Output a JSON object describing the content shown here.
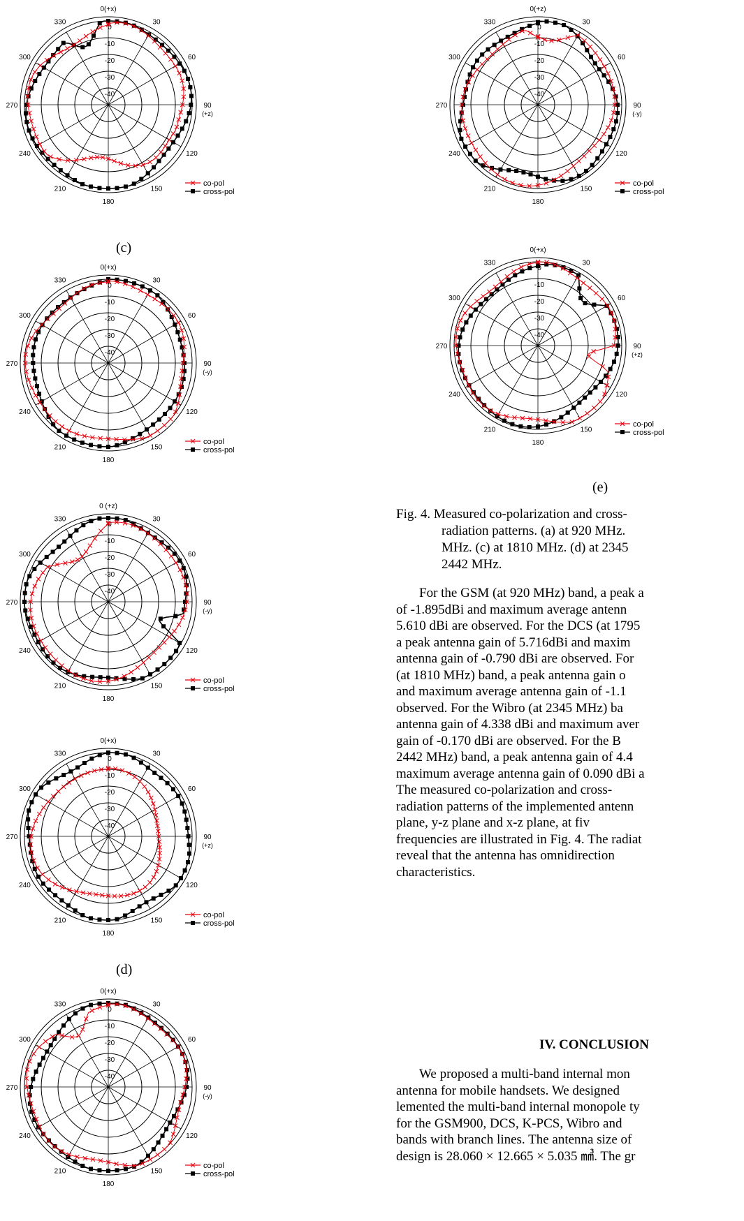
{
  "plots": [
    {
      "top_label": "0(+x)",
      "right_label": [
        "90",
        "(+z)"
      ],
      "legend": [
        "co-pol",
        "cross-pol"
      ],
      "sublabel": "(c)",
      "co_series": "co-pol",
      "cross_series": "cross-pol"
    },
    {
      "top_label": "0(+x)",
      "right_label": [
        "90",
        "(-y)"
      ],
      "legend": [
        "co-pol",
        "cross-pol"
      ],
      "sublabel": "",
      "co_series": "co-pol",
      "cross_series": "cross-pol"
    },
    {
      "top_label": "0 (+z)",
      "right_label": [
        "90",
        "(-y)"
      ],
      "legend": [
        "co-pol",
        "cross-pol"
      ],
      "sublabel": "",
      "co_series": "co-pol",
      "cross_series": "cross-pol"
    },
    {
      "top_label": "0(+x)",
      "right_label": [
        "90",
        "(+z)"
      ],
      "legend": [
        "co-pol",
        "cross-pol"
      ],
      "sublabel": "(d)",
      "co_series": "co-pol",
      "cross_series": "cross-pol"
    },
    {
      "top_label": "0(+x)",
      "right_label": [
        "90",
        "(-y)"
      ],
      "legend": [
        "co-pol",
        "cross-pol"
      ],
      "sublabel": "",
      "co_series": "co-pol",
      "cross_series": "cross-pol"
    },
    {
      "top_label": "0(+z)",
      "right_label": [
        "90",
        "(-y)"
      ],
      "legend": [
        "co-pol",
        "cross-pol"
      ],
      "sublabel": "",
      "co_series": "co-pol",
      "cross_series": "cross-pol"
    },
    {
      "top_label": "0(+x)",
      "right_label": [
        "90",
        "(+z)"
      ],
      "legend": [
        "co-pol",
        "cross-pol"
      ],
      "sublabel": "(e)",
      "co_series": "co-pol",
      "cross_series": "cross-pol"
    }
  ],
  "chart_data": {
    "type": "polar",
    "angle_ticks": [
      "0",
      "30",
      "60",
      "90",
      "120",
      "150",
      "180",
      "210",
      "240",
      "270",
      "300",
      "330"
    ],
    "radial_ticks": [
      "0",
      "-10",
      "-20",
      "-30",
      "-40"
    ],
    "rlim": [
      -50,
      0
    ],
    "legend_position": "bottom-right",
    "series_colors": {
      "co-pol": "#e8000b",
      "cross-pol": "#000000"
    },
    "series": [
      {
        "name": "co-pol",
        "marker": "x"
      },
      {
        "name": "cross-pol",
        "marker": "square"
      }
    ],
    "plots": [
      {
        "co": {
          "base": -4,
          "amps": [
            [
              3,
              3,
              0.2
            ],
            [
              2,
              5,
              1.1
            ]
          ],
          "dip": [
            170,
            120,
            25,
            -12
          ]
        },
        "cross": {
          "base": -2,
          "amps": [
            [
              2,
              2,
              0.5
            ],
            [
              2,
              4,
              1.8
            ]
          ],
          "dip": [
            340,
            30,
            20,
            -11
          ]
        }
      },
      {
        "co": {
          "base": -3,
          "amps": [
            [
              2,
              3,
              0.4
            ],
            [
              1.5,
              5,
              2.2
            ]
          ],
          "dip": [
            0,
            0,
            0,
            0
          ]
        },
        "cross": {
          "base": -3,
          "amps": [
            [
              3,
              2,
              1.0
            ],
            [
              2,
              4,
              0.3
            ]
          ],
          "dip": [
            0,
            0,
            0,
            0
          ]
        }
      },
      {
        "co": {
          "base": -5,
          "amps": [
            [
              3,
              2,
              0.1
            ],
            [
              2,
              4,
              1.2
            ]
          ],
          "dip": [
            330,
            60,
            40,
            -10
          ]
        },
        "cross": {
          "base": -2,
          "amps": [
            [
              2,
              3,
              0.6
            ],
            [
              2,
              5,
              2.0
            ]
          ],
          "dip": [
            110,
            20,
            20,
            -14
          ]
        }
      },
      {
        "co": {
          "base": -12,
          "amps": [
            [
              6,
              1,
              3.0
            ],
            [
              3,
              3,
              0.7
            ]
          ],
          "dip": [
            0,
            0,
            0,
            0
          ]
        },
        "cross": {
          "base": -2,
          "amps": [
            [
              2,
              4,
              0.5
            ],
            [
              1.5,
              6,
              1.5
            ]
          ],
          "dip": [
            0,
            0,
            0,
            0
          ]
        }
      },
      {
        "co": {
          "base": -3,
          "amps": [
            [
              2,
              3,
              0.2
            ],
            [
              2,
              5,
              1.4
            ]
          ],
          "dip": [
            330,
            30,
            20,
            -8
          ]
        },
        "cross": {
          "base": -3,
          "amps": [
            [
              3,
              2,
              0.9
            ],
            [
              2,
              4,
              2.1
            ]
          ],
          "dip": [
            0,
            0,
            0,
            0
          ]
        }
      },
      {
        "co": {
          "base": -5,
          "amps": [
            [
              3,
              2,
              0.4
            ],
            [
              2,
              4,
              1.0
            ]
          ],
          "dip": [
            10,
            40,
            30,
            -10
          ]
        },
        "cross": {
          "base": -4,
          "amps": [
            [
              3,
              3,
              1.3
            ],
            [
              2,
              5,
              0.2
            ]
          ],
          "dip": [
            0,
            0,
            0,
            0
          ]
        }
      },
      {
        "co": {
          "base": -3,
          "amps": [
            [
              2,
              3,
              0.6
            ],
            [
              2,
              5,
              1.7
            ]
          ],
          "dip": [
            100,
            20,
            20,
            -14
          ]
        },
        "cross": {
          "base": -4,
          "amps": [
            [
              3,
              2,
              0.1
            ],
            [
              2,
              4,
              1.1
            ]
          ],
          "dip": [
            45,
            30,
            20,
            -10
          ]
        }
      }
    ]
  },
  "caption": {
    "lines": [
      "Fig. 4. Measured co-polarization and cross-",
      "radiation patterns. (a) at 920 MHz.",
      "MHz. (c) at 1810 MHz. (d) at 2345",
      "2442 MHz."
    ]
  },
  "body": {
    "lines": [
      "For the GSM (at 920 MHz) band, a peak a",
      "of -1.895dBi and maximum average antenn",
      "5.610 dBi are observed. For the DCS (at 1795",
      "a peak antenna gain of 5.716dBi and maxim",
      "antenna gain of -0.790 dBi are observed. For",
      "(at 1810 MHz) band, a peak antenna gain o",
      "and maximum average antenna gain of -1.1",
      "observed. For the Wibro (at 2345 MHz) ba",
      "antenna gain of 4.338 dBi and maximum aver",
      "gain of -0.170 dBi are observed. For the B",
      "2442 MHz) band, a peak antenna gain of 4.4",
      "maximum average antenna gain of 0.090 dBi a",
      "The measured co-polarization and cross-",
      "radiation patterns of the implemented antenn",
      "plane, y-z plane and x-z plane, at fiv",
      "frequencies are illustrated in Fig. 4. The radiat",
      "reveal that the antenna has omnidirection",
      "characteristics."
    ]
  },
  "conclusion": {
    "heading": "IV. CONCLUSION",
    "lines": [
      "We proposed a multi-band internal mon",
      "antenna for mobile handsets. We designed",
      "lemented the multi-band internal monopole ty",
      "for the GSM900, DCS, K-PCS, Wibro and",
      "bands with branch lines. The antenna size of",
      "design is 28.060 × 12.665 × 5.035 ㎣. The gr"
    ]
  }
}
